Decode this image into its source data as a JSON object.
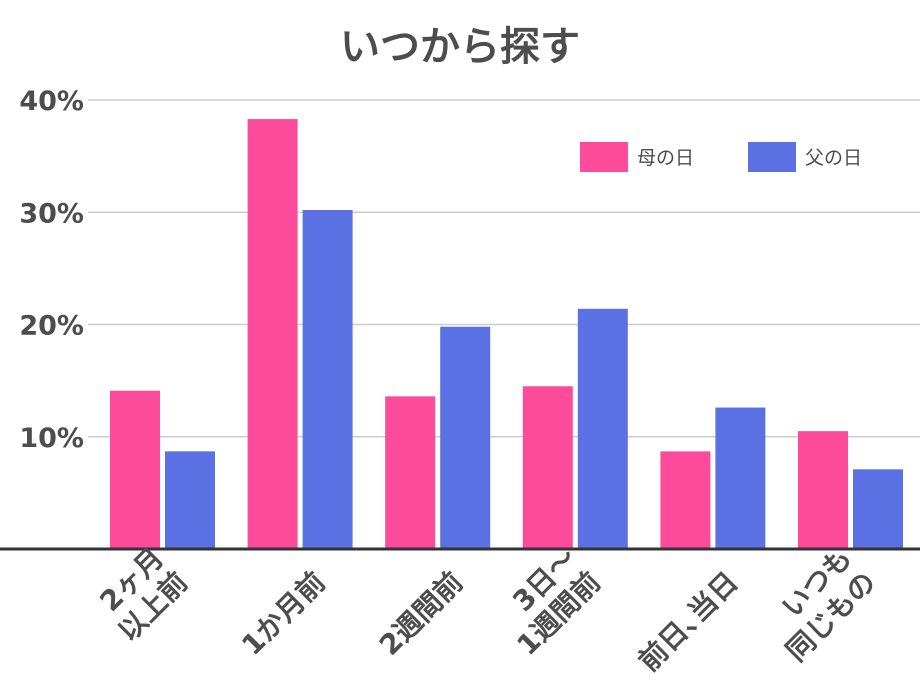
{
  "chart_data": {
    "type": "bar",
    "title": "いつから探す",
    "xlabel": "",
    "ylabel": "",
    "ylim": [
      0,
      40
    ],
    "yticks": [
      10,
      20,
      30,
      40
    ],
    "ytick_suffix": "%",
    "grid": true,
    "legend_position": "top-right",
    "categories": [
      [
        "2ヶ月",
        "以上前"
      ],
      [
        "1か月前"
      ],
      [
        "2週間前"
      ],
      [
        "3日〜",
        "1週間前"
      ],
      [
        "前日､当日"
      ],
      [
        "いつも",
        "同じもの"
      ]
    ],
    "series": [
      {
        "name": "母の日",
        "color": "#fc4b9b",
        "values": [
          14.1,
          38.3,
          13.6,
          14.5,
          8.7,
          10.5
        ]
      },
      {
        "name": "父の日",
        "color": "#5b71e3",
        "values": [
          8.7,
          30.2,
          19.8,
          21.4,
          12.6,
          7.1
        ]
      }
    ]
  }
}
